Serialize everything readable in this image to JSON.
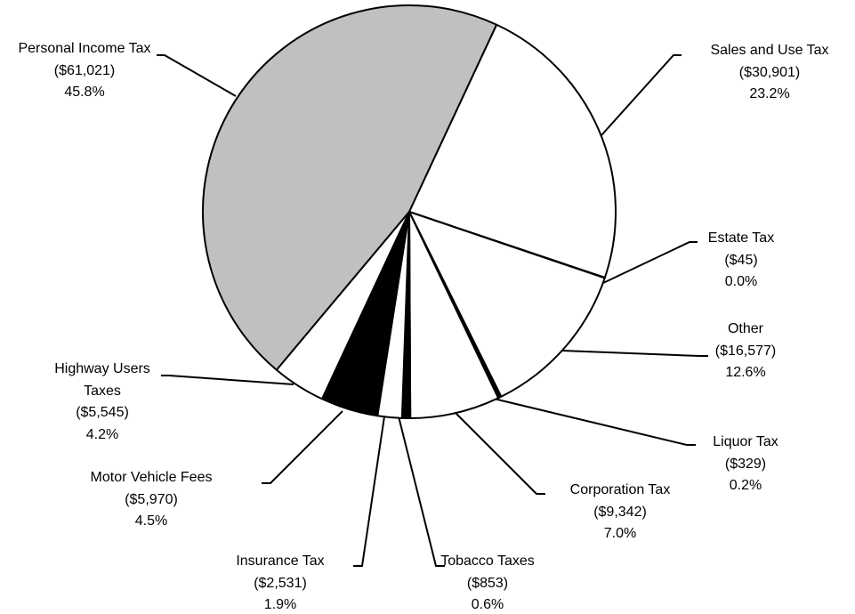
{
  "chart_data": {
    "type": "pie",
    "categories": [
      "Personal Income Tax",
      "Sales and Use Tax",
      "Estate Tax",
      "Other",
      "Liquor Tax",
      "Corporation Tax",
      "Tobacco Taxes",
      "Insurance Tax",
      "Motor Vehicle Fees",
      "Highway Users Taxes"
    ],
    "values": [
      61021,
      30901,
      45,
      16577,
      329,
      9342,
      853,
      2531,
      5970,
      5545
    ],
    "value_labels": [
      "($61,021)",
      "($30,901)",
      "($45)",
      "($16,577)",
      "($329)",
      "($9,342)",
      "($853)",
      "($2,531)",
      "($5,970)",
      "($5,545)"
    ],
    "percentages": [
      45.8,
      23.2,
      0.0,
      12.6,
      0.2,
      7.0,
      0.6,
      1.9,
      4.5,
      4.2
    ],
    "percentage_labels": [
      "45.8%",
      "23.2%",
      "0.0%",
      "12.6%",
      "0.2%",
      "7.0%",
      "0.6%",
      "1.9%",
      "4.5%",
      "4.2%"
    ],
    "colors": [
      "#c0c0c0",
      "#ffffff",
      "#ffffff",
      "#ffffff",
      "#000000",
      "#ffffff",
      "#000000",
      "#ffffff",
      "#000000",
      "#ffffff"
    ]
  }
}
